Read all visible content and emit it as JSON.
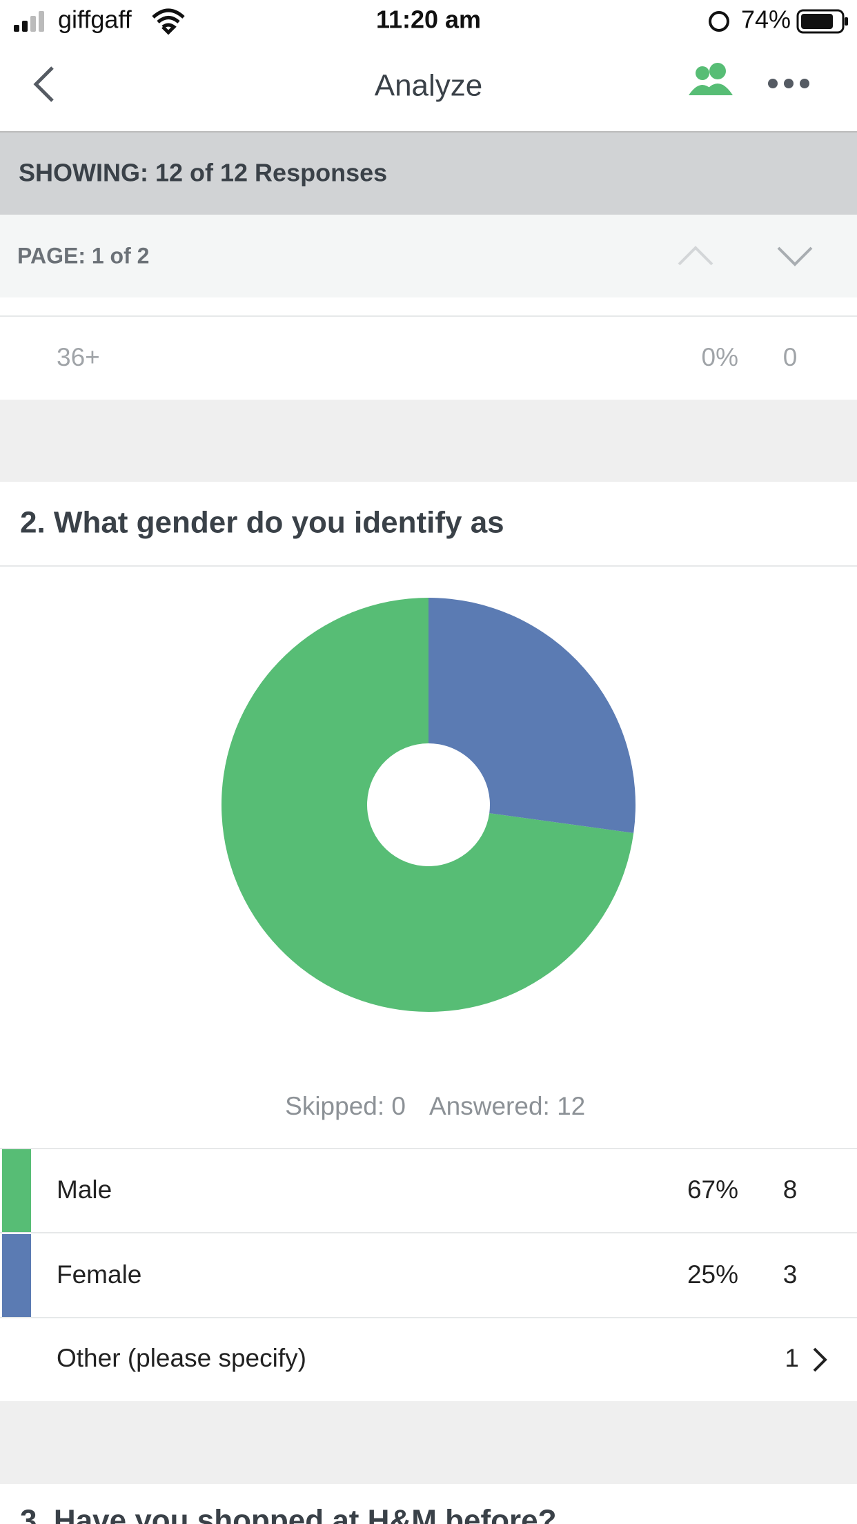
{
  "status_bar": {
    "carrier": "giffgaff",
    "time": "11:20 am",
    "battery": "74%"
  },
  "nav": {
    "title": "Analyze"
  },
  "filter_bar": {
    "showing": "SHOWING: 12 of 12 Responses",
    "page": "PAGE: 1 of 2"
  },
  "previous_row": {
    "label": "36+",
    "percent": "0%",
    "count": "0"
  },
  "question": {
    "title": "2. What gender do you identify as"
  },
  "chart_data": {
    "type": "pie",
    "donut": true,
    "categories": [
      "Male",
      "Female"
    ],
    "values": [
      67,
      25
    ],
    "value_labels": [
      "67%",
      "25%"
    ],
    "counts": [
      "8",
      "3"
    ],
    "colors": [
      "#57bd75",
      "#5b7bb3"
    ]
  },
  "summary": {
    "skipped": "Skipped: 0",
    "answered": "Answered: 12"
  },
  "other_row": {
    "label": "Other (please specify)",
    "count": "1"
  },
  "next_question": {
    "title": "3. Have you shopped at H&M before?"
  }
}
